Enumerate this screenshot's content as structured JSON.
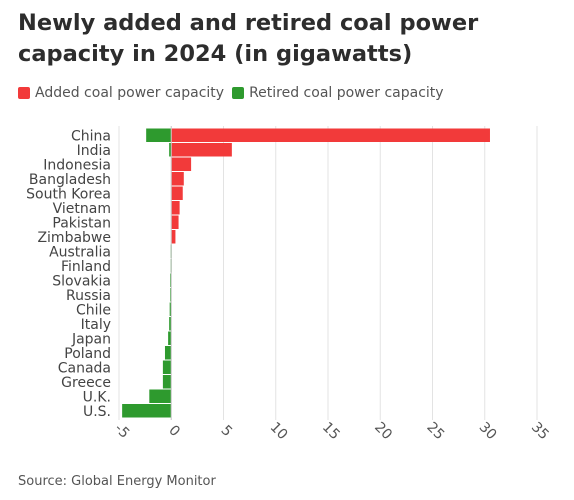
{
  "chart_data": {
    "type": "bar",
    "orientation": "horizontal",
    "title": "Newly added and retired coal power capacity in 2024 (in gigawatts)",
    "categories": [
      "China",
      "India",
      "Indonesia",
      "Bangladesh",
      "South Korea",
      "Vietnam",
      "Pakistan",
      "Zimbabwe",
      "Australia",
      "Finland",
      "Slovakia",
      "Russia",
      "Chile",
      "Italy",
      "Japan",
      "Poland",
      "Canada",
      "Greece",
      "U.K.",
      "U.S."
    ],
    "series": [
      {
        "name": "Added coal power capacity",
        "color": "#f23a3a",
        "values": [
          30.5,
          5.8,
          1.9,
          1.2,
          1.1,
          0.8,
          0.7,
          0.4,
          0,
          0,
          0,
          0,
          0,
          0,
          0,
          0,
          0,
          0,
          0,
          0
        ]
      },
      {
        "name": "Retired coal power capacity",
        "color": "#2e9a2e",
        "values": [
          -2.4,
          -0.2,
          0,
          0,
          0,
          0,
          0,
          0,
          -0.05,
          -0.05,
          -0.1,
          -0.1,
          -0.15,
          -0.2,
          -0.3,
          -0.6,
          -0.8,
          -0.8,
          -2.1,
          -4.7
        ]
      }
    ],
    "xlim": [
      -5,
      35
    ],
    "xticks": [
      -5,
      0,
      5,
      10,
      15,
      20,
      25,
      30,
      35
    ],
    "tick_labels": [
      "-5",
      "0",
      "5",
      "10",
      "15",
      "20",
      "25",
      "30",
      "35"
    ],
    "grid": true,
    "legend_position": "top-left",
    "source": "Source: Global Energy Monitor"
  }
}
